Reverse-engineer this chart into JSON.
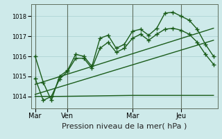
{
  "background_color": "#ceeaea",
  "grid_color": "#aed4d4",
  "line_color": "#1a5c1a",
  "title": "Pression niveau de la mer( hPa )",
  "ylabel_ticks": [
    1014,
    1015,
    1016,
    1017,
    1018
  ],
  "day_labels": [
    "Mar",
    "Ven",
    "Mar",
    "Jeu"
  ],
  "day_positions": [
    0,
    4,
    12,
    18
  ],
  "vline_positions": [
    0,
    4,
    12,
    18
  ],
  "xlim": [
    -0.5,
    22.5
  ],
  "ylim": [
    1013.4,
    1018.6
  ],
  "series1_x": [
    0,
    1,
    2,
    3,
    4,
    5,
    6,
    7,
    8,
    9,
    10,
    11,
    12,
    13,
    14,
    15,
    16,
    17,
    18,
    19,
    20,
    21,
    22
  ],
  "series1_y": [
    1016.0,
    1014.7,
    1013.8,
    1015.0,
    1015.3,
    1016.1,
    1016.0,
    1015.5,
    1016.9,
    1017.05,
    1016.4,
    1016.6,
    1017.25,
    1017.35,
    1017.05,
    1017.4,
    1018.15,
    1018.2,
    1018.0,
    1017.8,
    1017.35,
    1016.6,
    1016.0
  ],
  "series2_x": [
    0,
    1,
    2,
    3,
    4,
    5,
    6,
    7,
    8,
    9,
    10,
    11,
    12,
    13,
    14,
    15,
    16,
    17,
    18,
    19,
    20,
    21,
    22
  ],
  "series2_y": [
    1014.9,
    1013.8,
    1014.0,
    1014.85,
    1015.25,
    1015.9,
    1015.9,
    1015.4,
    1016.4,
    1016.7,
    1016.2,
    1016.4,
    1016.9,
    1017.1,
    1016.8,
    1017.1,
    1017.35,
    1017.4,
    1017.3,
    1017.1,
    1016.7,
    1016.1,
    1015.6
  ],
  "trend1_x": [
    0,
    22
  ],
  "trend1_y": [
    1014.6,
    1017.4
  ],
  "trend2_x": [
    0,
    22
  ],
  "trend2_y": [
    1014.1,
    1016.8
  ],
  "flat_x": [
    0,
    3,
    12,
    18,
    22
  ],
  "flat_y": [
    1014.0,
    1014.0,
    1014.05,
    1014.05,
    1014.05
  ],
  "marker": "+",
  "linewidth": 1.0,
  "markersize": 4
}
